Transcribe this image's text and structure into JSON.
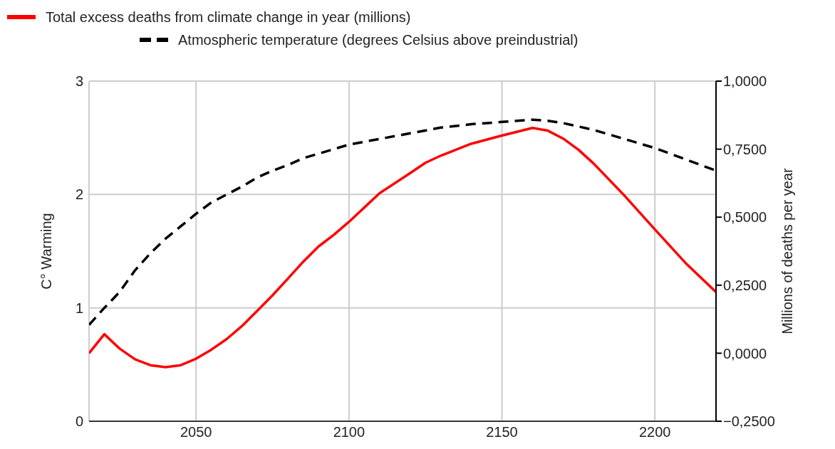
{
  "chart_data": {
    "type": "line",
    "xlabel": null,
    "ylabel": "C° Warming",
    "y2label": "Millions of deaths per year",
    "legend": "top",
    "grid": true,
    "marker": "none",
    "xlim": [
      2015,
      2220
    ],
    "xticks": [
      2050,
      2100,
      2150,
      2200
    ],
    "ylim": [
      0,
      3
    ],
    "yticks": [
      0,
      1,
      2,
      3
    ],
    "y2lim": [
      -0.25,
      1
    ],
    "y2ticks": [
      {
        "value": -0.25,
        "label": "−0,2500"
      },
      {
        "value": 0,
        "label": "0,0000"
      },
      {
        "value": 0.25,
        "label": "0,2500"
      },
      {
        "value": 0.5,
        "label": "0,5000"
      },
      {
        "value": 0.75,
        "label": "0,7500"
      },
      {
        "value": 1,
        "label": "1,0000"
      }
    ],
    "series": [
      {
        "name": "Total excess deaths from climate change in year (millions)",
        "color": "#ff0000",
        "axis": "y2",
        "line_style": "solid",
        "x": [
          2015,
          2020,
          2025,
          2030,
          2035,
          2040,
          2045,
          2050,
          2055,
          2060,
          2065,
          2070,
          2075,
          2080,
          2085,
          2090,
          2095,
          2100,
          2110,
          2120,
          2125,
          2130,
          2140,
          2150,
          2160,
          2165,
          2170,
          2175,
          2180,
          2190,
          2200,
          2210,
          2220
        ],
        "values": [
          0.0,
          0.07,
          0.017,
          -0.022,
          -0.044,
          -0.051,
          -0.044,
          -0.02,
          0.013,
          0.052,
          0.1,
          0.156,
          0.213,
          0.274,
          0.336,
          0.392,
          0.435,
          0.483,
          0.588,
          0.662,
          0.7,
          0.726,
          0.77,
          0.8,
          0.828,
          0.818,
          0.789,
          0.748,
          0.697,
          0.58,
          0.455,
          0.332,
          0.225
        ]
      },
      {
        "name": "Atmospheric temperature (degrees Celsius above preindustrial)",
        "color": "#000000",
        "line_style": "dashed",
        "x": [
          2015,
          2020,
          2025,
          2030,
          2035,
          2040,
          2045,
          2050,
          2055,
          2060,
          2065,
          2070,
          2075,
          2080,
          2085,
          2090,
          2095,
          2100,
          2110,
          2120,
          2130,
          2140,
          2150,
          2160,
          2165,
          2170,
          2180,
          2190,
          2200,
          2210,
          2220
        ],
        "values": [
          0.85,
          1.0,
          1.14,
          1.33,
          1.48,
          1.61,
          1.72,
          1.83,
          1.93,
          2.0,
          2.07,
          2.15,
          2.21,
          2.26,
          2.32,
          2.36,
          2.4,
          2.44,
          2.49,
          2.54,
          2.59,
          2.62,
          2.64,
          2.66,
          2.65,
          2.63,
          2.57,
          2.49,
          2.41,
          2.31,
          2.21
        ]
      }
    ]
  }
}
